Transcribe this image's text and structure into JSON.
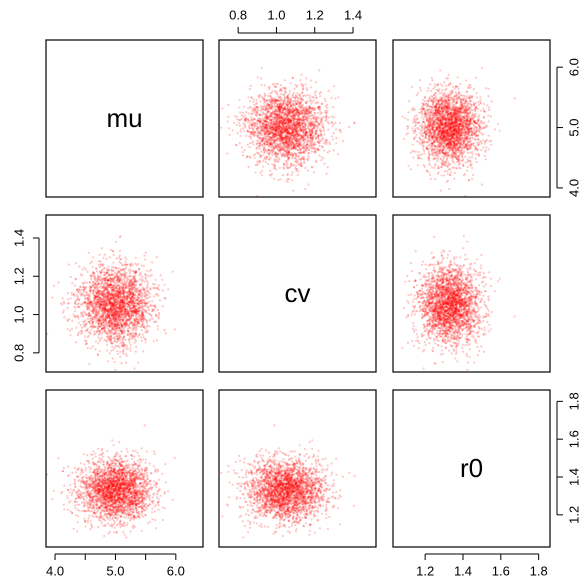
{
  "colors": {
    "points": "#ff0000",
    "frame": "#000000",
    "background": "#ffffff"
  },
  "chart_data": {
    "type": "scatter",
    "variables": [
      "mu",
      "cv",
      "r0"
    ],
    "ranges": {
      "mu": [
        3.85,
        6.45
      ],
      "cv": [
        0.7,
        1.52
      ],
      "r0": [
        1.03,
        1.86
      ]
    },
    "ticks": {
      "mu": [
        "4.0",
        "5.0",
        "6.0"
      ],
      "cv": [
        "0.8",
        "1.0",
        "1.2",
        "1.4"
      ],
      "r0": [
        "1.2",
        "1.4",
        "1.6",
        "1.8"
      ]
    },
    "minor_ticks": {
      "mu": [
        4.5,
        5.5
      ]
    },
    "distributions": {
      "mu": {
        "mean": 5.0,
        "sd": 0.3
      },
      "cv": {
        "mean": 1.05,
        "sd": 0.1
      },
      "r0": {
        "mean": 1.33,
        "sd": 0.08
      }
    },
    "n_points": 2600,
    "diagonal_labels": {
      "mu": "mu",
      "cv": "cv",
      "r0": "r0"
    },
    "grid": false,
    "legend": "none"
  }
}
